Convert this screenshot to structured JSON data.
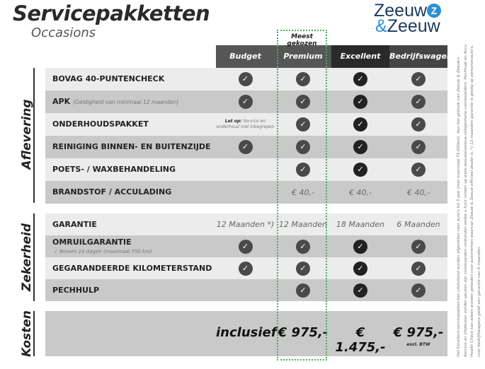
{
  "title": "Servicepakketten",
  "subtitle": "Occasions",
  "logo": {
    "line1": "Zeeuw",
    "line2_amp": "&",
    "line2": "Zeeuw",
    "mark": "Z"
  },
  "highlight_label": "Meest gekozen",
  "columns": [
    "Budget",
    "Premium",
    "Excellent",
    "Bedrijfswagens"
  ],
  "colors": {
    "highlight": "#4caf50",
    "check": "#4a4a4a",
    "check_excellent": "#222222",
    "row_light": "#ececec",
    "row_dark": "#c9c9c9"
  },
  "sections": [
    {
      "label": "Aflevering",
      "rows": [
        {
          "label": "BOVAG 40-PUNTENCHECK",
          "cells": [
            "check",
            "check",
            "check",
            "check"
          ]
        },
        {
          "label": "APK",
          "note": "(Geldigheid van minimaal 12 maanden)",
          "cells": [
            "check",
            "check",
            "check",
            "check"
          ]
        },
        {
          "label": "ONDERHOUDSPAKKET",
          "budget_note": {
            "bold": "Let op:",
            "text": "Service en onderhoud niet inbegrepen"
          },
          "cells": [
            "",
            "check",
            "check",
            "check"
          ]
        },
        {
          "label": "REINIGING BINNEN- EN BUITENZIJDE",
          "cells": [
            "check",
            "check",
            "check",
            "check"
          ]
        },
        {
          "label": "POETS- / WAXBEHANDELING",
          "cells": [
            "",
            "check",
            "check",
            "check"
          ]
        },
        {
          "label": "BRANDSTOF / ACCULADING",
          "cells": [
            "",
            "€ 40,-",
            "€ 40,-",
            "€ 40,-"
          ]
        }
      ]
    },
    {
      "label": "Zekerheid",
      "rows": [
        {
          "label": "GARANTIE",
          "cells": [
            "12 Maanden *)",
            "12 Maanden",
            "18 Maanden",
            "6 Maanden"
          ]
        },
        {
          "label": "OMRUILGARANTIE",
          "sub": "✓  Binnen 14 dagen (maximaal 750 km)",
          "cells": [
            "check",
            "check",
            "check",
            "check"
          ]
        },
        {
          "label": "GEGARANDEERDE KILOMETERSTAND",
          "cells": [
            "check",
            "check",
            "check",
            "check"
          ]
        },
        {
          "label": "PECHHULP",
          "cells": [
            "",
            "check",
            "check",
            "check"
          ]
        }
      ]
    }
  ],
  "kosten": {
    "label": "Kosten",
    "prices": [
      "inclusief",
      "€ 975,-",
      "€ 1.475,-",
      "€ 975,-"
    ],
    "excl": "excl. BTW"
  },
  "footnote": "Het Excellent-servicepakket kan uitsluitend worden afgesloten voor auto's tot 5 jaar (met maximaal 75.000km). Aan het gebruik van Zeeuw & Zeeuw+ Service en Uitdeuken zonder spuiten zijn voorwaarden verbonden welke u kunt vinden op www.zeeuwenzeeuw.nl/algemene-voorwaarden/. Pechhulp en Accu Health Check kan alleen worden geboden voor automerken waarvan Zeeuw & Zeeuw officieel dealer is. *) 12 maanden garantie is geldig op personenauto's, voor bedrijfswagens geldt een garantie van 6 maanden."
}
